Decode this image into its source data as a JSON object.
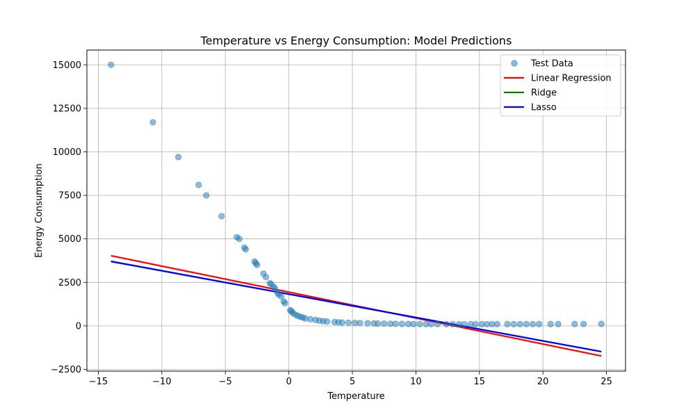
{
  "chart_data": {
    "type": "scatter",
    "title": "Temperature vs Energy Consumption: Model Predictions",
    "xlabel": "Temperature",
    "ylabel": "Energy Consumption",
    "xlim": [
      -15.9,
      26.5
    ],
    "ylim": [
      -2600,
      15850
    ],
    "xticks": [
      -15,
      -10,
      -5,
      0,
      5,
      10,
      15,
      20,
      25
    ],
    "yticks": [
      -2500,
      0,
      2500,
      5000,
      7500,
      10000,
      12500,
      15000
    ],
    "xtick_labels": [
      "−15",
      "−10",
      "−5",
      "0",
      "5",
      "10",
      "15",
      "20",
      "25"
    ],
    "ytick_labels": [
      "−2500",
      "0",
      "2500",
      "5000",
      "7500",
      "10000",
      "12500",
      "15000"
    ],
    "grid": true,
    "legend_position": "top-right",
    "legend": [
      "Test Data",
      "Linear Regression",
      "Ridge",
      "Lasso"
    ],
    "scatter": {
      "name": "Test Data",
      "color": "#1f77b4",
      "points": [
        [
          -14.0,
          15000
        ],
        [
          -10.7,
          11700
        ],
        [
          -8.7,
          9700
        ],
        [
          -7.1,
          8100
        ],
        [
          -6.5,
          7500
        ],
        [
          -5.3,
          6300
        ],
        [
          -4.1,
          5100
        ],
        [
          -3.9,
          5000
        ],
        [
          -3.5,
          4500
        ],
        [
          -3.4,
          4400
        ],
        [
          -2.7,
          3700
        ],
        [
          -2.6,
          3600
        ],
        [
          -2.5,
          3500
        ],
        [
          -2.0,
          3000
        ],
        [
          -1.8,
          2800
        ],
        [
          -1.5,
          2450
        ],
        [
          -1.4,
          2400
        ],
        [
          -1.2,
          2250
        ],
        [
          -1.1,
          2150
        ],
        [
          -0.9,
          1900
        ],
        [
          -0.8,
          1800
        ],
        [
          -0.6,
          1700
        ],
        [
          -0.4,
          1400
        ],
        [
          -0.3,
          1300
        ],
        [
          0.1,
          900
        ],
        [
          0.2,
          850
        ],
        [
          0.3,
          750
        ],
        [
          0.5,
          650
        ],
        [
          0.7,
          580
        ],
        [
          0.9,
          520
        ],
        [
          1.1,
          480
        ],
        [
          1.3,
          420
        ],
        [
          1.7,
          380
        ],
        [
          2.1,
          340
        ],
        [
          2.4,
          300
        ],
        [
          2.7,
          270
        ],
        [
          3.0,
          250
        ],
        [
          3.6,
          220
        ],
        [
          3.9,
          200
        ],
        [
          4.2,
          190
        ],
        [
          4.7,
          180
        ],
        [
          5.2,
          170
        ],
        [
          5.6,
          160
        ],
        [
          6.2,
          150
        ],
        [
          6.7,
          140
        ],
        [
          7.0,
          135
        ],
        [
          7.5,
          130
        ],
        [
          8.0,
          125
        ],
        [
          8.4,
          120
        ],
        [
          8.9,
          115
        ],
        [
          9.4,
          110
        ],
        [
          9.8,
          108
        ],
        [
          10.3,
          105
        ],
        [
          10.8,
          102
        ],
        [
          11.2,
          100
        ],
        [
          11.7,
          100
        ],
        [
          12.4,
          98
        ],
        [
          12.9,
          98
        ],
        [
          13.4,
          97
        ],
        [
          13.8,
          97
        ],
        [
          14.3,
          97
        ],
        [
          14.7,
          98
        ],
        [
          15.2,
          98
        ],
        [
          15.6,
          99
        ],
        [
          16.0,
          99
        ],
        [
          16.4,
          100
        ],
        [
          17.2,
          100
        ],
        [
          17.7,
          101
        ],
        [
          18.2,
          102
        ],
        [
          18.7,
          103
        ],
        [
          19.2,
          104
        ],
        [
          19.7,
          105
        ],
        [
          20.6,
          106
        ],
        [
          21.2,
          107
        ],
        [
          22.5,
          108
        ],
        [
          23.2,
          109
        ],
        [
          24.6,
          110
        ]
      ]
    },
    "lines": [
      {
        "name": "Linear Regression",
        "color": "#ff0000",
        "x": [
          -14.0,
          24.6
        ],
        "y": [
          4030,
          -1730
        ]
      },
      {
        "name": "Ridge",
        "color": "#008000",
        "x": [
          -14.0,
          24.6
        ],
        "y": [
          3710,
          -1480
        ]
      },
      {
        "name": "Lasso",
        "color": "#0000ff",
        "x": [
          -14.0,
          24.6
        ],
        "y": [
          3700,
          -1480
        ]
      }
    ]
  }
}
